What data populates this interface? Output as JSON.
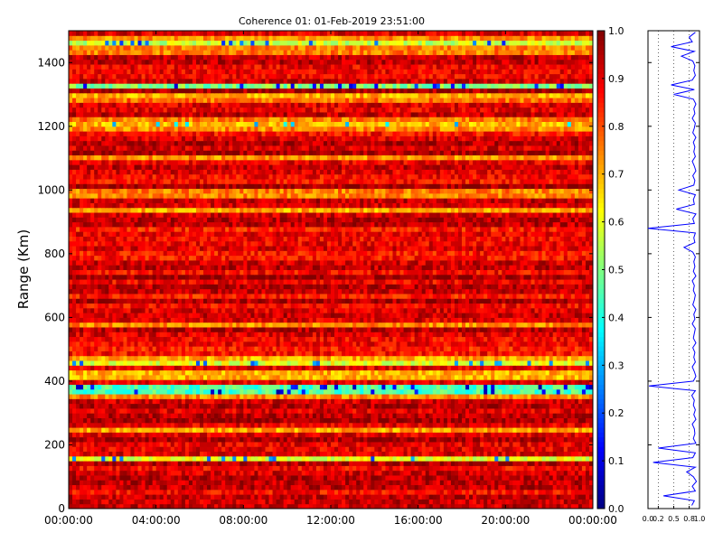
{
  "chart_data": [
    {
      "type": "heatmap",
      "title": "Coherence 01: 01-Feb-2019 23:51:00",
      "xlabel": "",
      "ylabel": "Range (Km)",
      "x_tick_labels": [
        "00:00:00",
        "04:00:00",
        "08:00:00",
        "12:00:00",
        "16:00:00",
        "20:00:00",
        "00:00:00"
      ],
      "y_ticks": [
        0,
        200,
        400,
        600,
        800,
        1000,
        1200,
        1400
      ],
      "ylim": [
        0,
        1500
      ],
      "colorbar": {
        "colormap": "jet",
        "range": [
          0.0,
          1.0
        ],
        "tick_labels": [
          "0.0",
          "0.1",
          "0.2",
          "0.3",
          "0.4",
          "0.5",
          "0.6",
          "0.7",
          "0.8",
          "0.9",
          "1.0"
        ]
      },
      "range_bins": 100,
      "time_bins": 144,
      "low_coherence_bands_km": [
        {
          "range": 1465,
          "level": 0.42
        },
        {
          "range": 1440,
          "level": 0.6
        },
        {
          "range": 1330,
          "level": 0.35
        },
        {
          "range": 1300,
          "level": 0.55
        },
        {
          "range": 990,
          "level": 0.6
        },
        {
          "range": 460,
          "level": 0.45
        },
        {
          "range": 420,
          "level": 0.55
        },
        {
          "range": 375,
          "level": 0.3
        },
        {
          "range": 160,
          "level": 0.45
        }
      ]
    },
    {
      "type": "line",
      "title": "",
      "xlabel": "",
      "ylabel": "",
      "x_tick_labels": [
        "0.0",
        "0.2",
        "0.5",
        "0.8",
        "1.0"
      ],
      "xlim": [
        0,
        1
      ],
      "ylim": [
        0,
        1500
      ],
      "series_color": "#0000ff",
      "series": [
        {
          "name": "",
          "y": [
            10,
            25,
            40,
            55,
            70,
            85,
            100,
            115,
            130,
            145,
            160,
            175,
            190,
            205,
            220,
            235,
            250,
            265,
            280,
            295,
            310,
            325,
            340,
            355,
            370,
            385,
            400,
            415,
            430,
            445,
            460,
            475,
            490,
            505,
            520,
            535,
            550,
            565,
            580,
            595,
            610,
            625,
            640,
            655,
            670,
            685,
            700,
            715,
            730,
            745,
            760,
            775,
            790,
            805,
            820,
            835,
            850,
            865,
            880,
            895,
            910,
            925,
            940,
            955,
            970,
            985,
            1000,
            1015,
            1030,
            1045,
            1060,
            1075,
            1090,
            1105,
            1120,
            1135,
            1150,
            1165,
            1180,
            1195,
            1210,
            1225,
            1240,
            1255,
            1270,
            1285,
            1300,
            1315,
            1330,
            1345,
            1360,
            1375,
            1390,
            1405,
            1420,
            1435,
            1450,
            1465,
            1480,
            1495
          ],
          "x": [
            0.85,
            0.9,
            0.3,
            0.92,
            0.86,
            0.94,
            0.88,
            0.75,
            0.92,
            0.1,
            0.87,
            0.92,
            0.2,
            0.93,
            0.88,
            0.91,
            0.9,
            0.86,
            0.93,
            0.89,
            0.92,
            0.88,
            0.9,
            0.85,
            0.92,
            0.02,
            0.88,
            0.93,
            0.9,
            0.86,
            0.92,
            0.89,
            0.91,
            0.87,
            0.93,
            0.88,
            0.9,
            0.92,
            0.86,
            0.91,
            0.89,
            0.93,
            0.87,
            0.9,
            0.92,
            0.88,
            0.9,
            0.86,
            0.93,
            0.88,
            0.91,
            0.89,
            0.92,
            0.87,
            0.7,
            0.91,
            0.89,
            0.92,
            0.0,
            0.9,
            0.87,
            0.93,
            0.55,
            0.9,
            0.88,
            0.92,
            0.6,
            0.89,
            0.91,
            0.87,
            0.93,
            0.9,
            0.86,
            0.92,
            0.89,
            0.91,
            0.88,
            0.93,
            0.87,
            0.9,
            0.92,
            0.86,
            0.91,
            0.89,
            0.93,
            0.88,
            0.5,
            0.9,
            0.45,
            0.86,
            0.92,
            0.89,
            0.91,
            0.87,
            0.65,
            0.9,
            0.45,
            0.86,
            0.8,
            0.92
          ]
        }
      ]
    }
  ]
}
